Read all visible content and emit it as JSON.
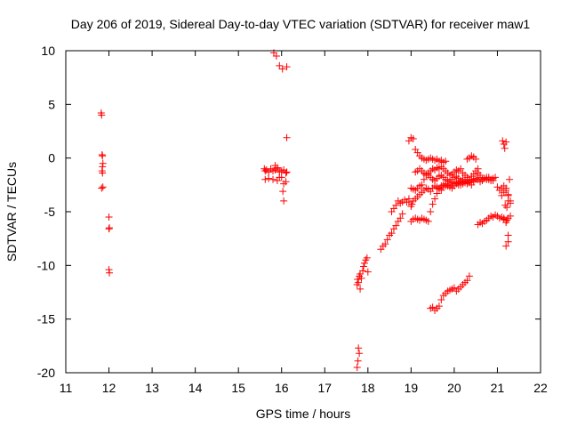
{
  "chart_data": {
    "type": "scatter",
    "title": "Day 206 of 2019, Sidereal Day-to-day VTEC variation (SDTVAR) for receiver maw1",
    "xlabel": "GPS time / hours",
    "ylabel": "SDTVAR / TECUs",
    "xlim": [
      11,
      22
    ],
    "ylim": [
      -20,
      10
    ],
    "xticks": [
      11,
      12,
      13,
      14,
      15,
      16,
      17,
      18,
      19,
      20,
      21,
      22
    ],
    "yticks": [
      -20,
      -15,
      -10,
      -5,
      0,
      5,
      10
    ],
    "marker": "plus",
    "color": "#ff0000",
    "grid": false,
    "series": [
      {
        "name": "maw1",
        "x": [
          11.82,
          11.83,
          11.84,
          11.85,
          11.86,
          11.85,
          11.84,
          11.85,
          11.86,
          11.83,
          12.0,
          12.01,
          12.0,
          12.0,
          12.01,
          15.6,
          15.62,
          15.65,
          15.7,
          15.75,
          15.8,
          15.85,
          15.9,
          15.95,
          16.0,
          16.05,
          16.1,
          16.12,
          15.62,
          15.7,
          15.8,
          15.9,
          16.0,
          16.1,
          15.82,
          15.88,
          15.95,
          16.02,
          15.85,
          15.9,
          15.95,
          16.05,
          16.12,
          16.03,
          16.05,
          16.12,
          17.75,
          17.77,
          17.78,
          17.8,
          17.82,
          17.75,
          17.76,
          17.78,
          17.8,
          17.82,
          17.85,
          17.88,
          17.9,
          17.92,
          17.95,
          17.98,
          18.0,
          18.3,
          18.35,
          18.4,
          18.45,
          18.5,
          18.55,
          18.6,
          18.65,
          18.7,
          18.75,
          18.8,
          18.55,
          18.6,
          18.65,
          18.7,
          18.75,
          18.8,
          18.85,
          18.9,
          18.95,
          18.95,
          19.0,
          19.05,
          19.1,
          19.15,
          19.2,
          19.25,
          19.3,
          19.35,
          19.4,
          19.45,
          19.5,
          19.55,
          19.6,
          19.65,
          19.7,
          19.75,
          19.8,
          18.95,
          19.0,
          19.02,
          19.05,
          19.1,
          19.15,
          19.2,
          19.25,
          19.3,
          19.35,
          19.4,
          19.45,
          19.5,
          19.55,
          19.6,
          19.65,
          19.7,
          19.75,
          19.8,
          19.85,
          19.9,
          19.95,
          20.0,
          20.05,
          20.1,
          20.15,
          20.2,
          20.25,
          20.3,
          20.35,
          20.4,
          20.45,
          20.5,
          20.55,
          20.6,
          20.65,
          20.7,
          20.75,
          20.8,
          20.85,
          20.9,
          19.0,
          19.05,
          19.1,
          19.15,
          19.2,
          19.25,
          19.3,
          19.35,
          19.4,
          19.45,
          19.5,
          19.55,
          19.6,
          19.65,
          19.7,
          19.75,
          19.8,
          19.85,
          19.9,
          19.95,
          20.0,
          20.05,
          20.1,
          20.15,
          20.2,
          20.25,
          20.3,
          20.35,
          19.0,
          19.05,
          19.1,
          19.15,
          19.2,
          19.25,
          19.3,
          19.35,
          19.4,
          19.45,
          19.5,
          19.55,
          19.6,
          19.65,
          19.7,
          19.75,
          19.8,
          19.85,
          19.9,
          19.95,
          20.0,
          20.05,
          20.1,
          20.15,
          20.2,
          20.25,
          20.3,
          20.35,
          20.4,
          20.45,
          20.5,
          20.55,
          20.6,
          19.1,
          19.15,
          19.2,
          19.25,
          19.3,
          19.35,
          19.4,
          19.45,
          19.5,
          19.55,
          19.6,
          19.65,
          19.7,
          19.75,
          19.8,
          19.85,
          19.9,
          19.95,
          20.0,
          20.05,
          20.1,
          20.15,
          20.2,
          20.25,
          20.3,
          20.35,
          20.4,
          20.45,
          20.5,
          19.45,
          19.5,
          19.55,
          19.6,
          19.65,
          19.7,
          19.75,
          19.8,
          19.85,
          19.9,
          19.95,
          20.0,
          20.05,
          20.1,
          20.15,
          20.2,
          20.25,
          20.3,
          20.35,
          20.3,
          20.35,
          20.4,
          20.45,
          20.5,
          20.55,
          20.6,
          20.65,
          20.7,
          20.75,
          20.8,
          20.85,
          20.9,
          20.95,
          21.0,
          21.05,
          21.1,
          21.15,
          21.2,
          21.25,
          21.3,
          20.55,
          20.6,
          20.65,
          20.7,
          20.75,
          20.8,
          20.85,
          20.9,
          20.95,
          21.0,
          21.05,
          21.1,
          21.15,
          21.2,
          21.25,
          21.3,
          21.12,
          21.15,
          21.17,
          21.2,
          21.18,
          21.22,
          21.25,
          21.15,
          21.2,
          21.22,
          21.25,
          21.1,
          21.15,
          21.2,
          21.25,
          21.28,
          21.3,
          21.2,
          21.25
        ],
        "y": [
          4.2,
          4.0,
          0.3,
          0.2,
          -0.5,
          -0.8,
          -1.2,
          -1.4,
          -2.7,
          -2.8,
          -5.5,
          -6.5,
          -6.6,
          -10.4,
          -10.7,
          -1.0,
          -1.2,
          -1.1,
          -1.3,
          -1.0,
          -1.2,
          -1.1,
          -1.0,
          -1.3,
          -1.2,
          -1.1,
          -1.4,
          -1.3,
          -2.0,
          -1.9,
          -2.0,
          -2.1,
          -1.8,
          -2.2,
          9.8,
          9.5,
          8.6,
          8.3,
          -0.7,
          -0.9,
          -1.8,
          -2.4,
          8.5,
          -3.1,
          -4.0,
          1.9,
          -19.5,
          -18.9,
          -17.7,
          -18.2,
          -12.2,
          -11.8,
          -11.3,
          -11.6,
          -11.0,
          -10.8,
          -11.2,
          -10.5,
          -10.1,
          -9.8,
          -9.5,
          -9.3,
          -10.6,
          -8.5,
          -8.2,
          -8.0,
          -7.6,
          -7.2,
          -7.0,
          -6.6,
          -6.3,
          -5.9,
          -5.6,
          -5.2,
          -5.0,
          -4.7,
          -4.4,
          -4.0,
          -4.2,
          -4.1,
          -3.9,
          -4.1,
          -3.8,
          1.6,
          1.9,
          1.8,
          0.8,
          0.5,
          0.2,
          0.0,
          -0.1,
          -0.2,
          -0.1,
          0.0,
          -0.1,
          -0.2,
          -0.1,
          -0.3,
          -0.2,
          -0.4,
          -0.3,
          -4.1,
          -4.5,
          -4.3,
          -4.0,
          -3.8,
          -3.6,
          -3.4,
          -3.2,
          -3.0,
          -2.8,
          -2.9,
          -3.1,
          -2.8,
          -2.6,
          -2.7,
          -2.9,
          -3.0,
          -2.7,
          -2.6,
          -2.5,
          -2.7,
          -2.8,
          -2.6,
          -2.4,
          -2.5,
          -2.3,
          -2.2,
          -2.3,
          -2.1,
          -2.2,
          -2.0,
          -2.1,
          -1.9,
          -2.0,
          -2.2,
          -2.1,
          -1.9,
          -2.0,
          -1.8,
          -2.0,
          -2.1,
          -5.9,
          -5.7,
          -5.6,
          -5.7,
          -5.8,
          -5.6,
          -5.7,
          -5.8,
          -5.9,
          -5.0,
          -4.3,
          -3.8,
          -3.3,
          -2.8,
          -2.6,
          -2.5,
          -2.4,
          -2.6,
          -2.5,
          -2.3,
          -2.4,
          -2.2,
          -2.3,
          -2.5,
          -2.4,
          -2.2,
          -2.3,
          -2.1,
          -2.8,
          -2.9,
          -3.0,
          -2.8,
          -2.6,
          -2.5,
          -2.0,
          -1.6,
          -1.4,
          -1.2,
          -1.0,
          -1.1,
          -0.9,
          -1.0,
          -0.8,
          -1.0,
          -1.2,
          -1.4,
          -1.6,
          -1.5,
          -1.3,
          -1.1,
          -1.2,
          -1.0,
          -1.4,
          -1.6,
          -1.8,
          -2.0,
          -1.7,
          -1.5,
          -1.2,
          -1.4,
          -1.6,
          -1.3,
          -1.2,
          -1.0,
          -1.2,
          -1.4,
          -1.5,
          -1.6,
          -1.8,
          -2.0,
          -2.1,
          -1.9,
          -1.7,
          -1.6,
          -1.8,
          -2.0,
          -2.1,
          -2.2,
          -2.0,
          -1.8,
          -1.7,
          -1.9,
          -2.1,
          -2.0,
          -2.2,
          -2.4,
          -2.3,
          -2.5,
          -2.2,
          -2.0,
          -14.0,
          -13.9,
          -14.2,
          -14.0,
          -13.8,
          -13.2,
          -12.8,
          -12.6,
          -12.4,
          -12.3,
          -12.2,
          -12.1,
          -12.4,
          -12.2,
          -12.0,
          -11.8,
          -11.6,
          -11.4,
          -11.0,
          -0.1,
          0.0,
          0.2,
          0.1,
          -0.1,
          -1.0,
          -1.8,
          -2.0,
          -1.9,
          -1.8,
          -2.0,
          -2.1,
          -1.9,
          -1.8,
          -2.7,
          -3.0,
          -2.8,
          -2.6,
          -2.8,
          -3.5,
          -4.2,
          -6.2,
          -6.0,
          -6.1,
          -5.9,
          -5.8,
          -5.6,
          -5.4,
          -5.5,
          -5.3,
          -5.4,
          -5.6,
          -5.5,
          -5.7,
          -5.8,
          -5.6,
          -5.4,
          1.6,
          1.3,
          0.9,
          1.5,
          -4.4,
          -4.6,
          -4.0,
          -5.6,
          -6.0,
          -5.8,
          -7.2,
          -3.5,
          -3.2,
          -3.0,
          -3.4,
          -2.0,
          -4.0,
          -8.2,
          -7.8
        ]
      }
    ]
  }
}
